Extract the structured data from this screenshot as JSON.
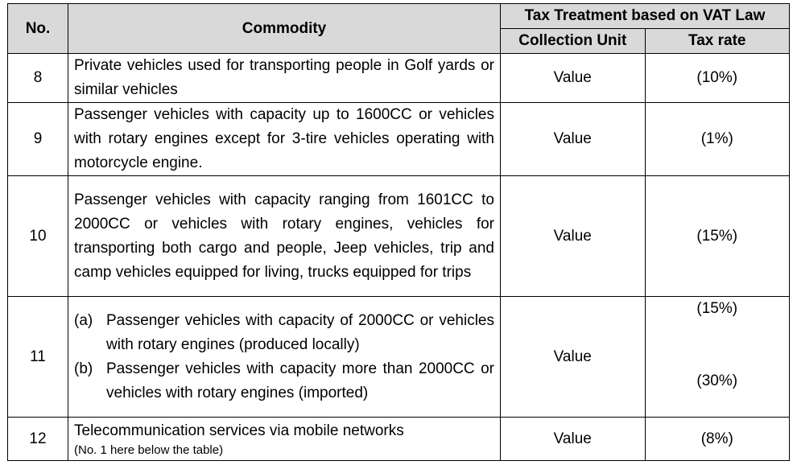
{
  "header": {
    "no": "No.",
    "commodity": "Commodity",
    "group": "Tax Treatment based on VAT Law",
    "collection_unit": "Collection Unit",
    "tax_rate": "Tax rate"
  },
  "rows": [
    {
      "no": "8",
      "commodity": "Private vehicles used for transporting people in Golf yards or similar vehicles",
      "unit": "Value",
      "rate": "(10%)"
    },
    {
      "no": "9",
      "commodity": "Passenger vehicles with capacity up to 1600CC or vehicles with rotary engines except for 3-tire vehicles operating with motorcycle engine.",
      "unit": "Value",
      "rate": "(1%)"
    },
    {
      "no": "10",
      "commodity": "Passenger vehicles with capacity ranging from 1601CC to 2000CC or vehicles with rotary engines, vehicles for transporting both cargo and people, Jeep vehicles, trip and camp vehicles equipped for living, trucks equipped for trips",
      "unit": "Value",
      "rate": "(15%)"
    },
    {
      "no": "11",
      "sub_a_label": "(a)",
      "sub_a": "Passenger vehicles with capacity of 2000CC or vehicles with rotary engines (produced locally)",
      "sub_b_label": "(b)",
      "sub_b": "Passenger vehicles with capacity more than 2000CC or vehicles with rotary engines (imported)",
      "unit": "Value",
      "rate_a": "(15%)",
      "rate_b": "(30%)"
    },
    {
      "no": "12",
      "commodity": "Telecommunication services via mobile networks",
      "note": "(No. 1 here below the table)",
      "unit": "Value",
      "rate": "(8%)"
    }
  ]
}
